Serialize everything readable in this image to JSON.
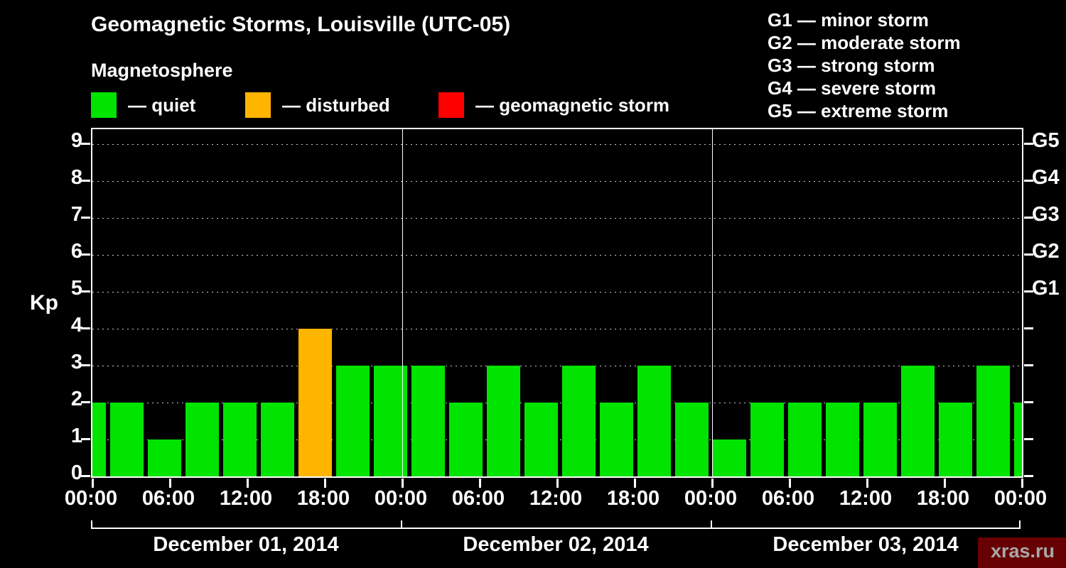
{
  "title": "Geomagnetic Storms, Louisville (UTC-05)",
  "watermark": "xras.ru",
  "legend": {
    "heading": "Magnetosphere",
    "items": [
      {
        "key": "quiet",
        "label": "— quiet",
        "color": "#00e400"
      },
      {
        "key": "disturbed",
        "label": "— disturbed",
        "color": "#ffb400"
      },
      {
        "key": "storm",
        "label": "— geomagnetic storm",
        "color": "#ff0000"
      }
    ]
  },
  "g_scale_legend": [
    "G1 — minor storm",
    "G2 — moderate storm",
    "G3 — strong storm",
    "G4 — severe storm",
    "G5 — extreme storm"
  ],
  "chart_data": {
    "type": "bar",
    "title": "Geomagnetic Storms, Louisville (UTC-05)",
    "ylabel": "Kp",
    "ylim": [
      0,
      9.4
    ],
    "yticks": [
      0,
      1,
      2,
      3,
      4,
      5,
      6,
      7,
      8,
      9
    ],
    "right_axis": [
      {
        "label": "G1",
        "kp": 5
      },
      {
        "label": "G2",
        "kp": 6
      },
      {
        "label": "G3",
        "kp": 7
      },
      {
        "label": "G4",
        "kp": 8
      },
      {
        "label": "G5",
        "kp": 9
      }
    ],
    "x_time_ticks": [
      "00:00",
      "06:00",
      "12:00",
      "18:00",
      "00:00",
      "06:00",
      "12:00",
      "18:00",
      "00:00",
      "06:00",
      "12:00",
      "18:00",
      "00:00"
    ],
    "bar_interval_hours": 3,
    "grid": "dashed horizontal at each integer Kp",
    "legend_position": "top",
    "colors": {
      "quiet": "#00e400",
      "disturbed": "#ffb400",
      "storm": "#ff0000"
    },
    "color_rule": {
      "quiet_max_kp": 3,
      "disturbed_kp": 4,
      "storm_min_kp": 5
    },
    "leading_partial_kp": 2,
    "trailing_partial_kp": 2,
    "days": [
      {
        "date": "December 01, 2014",
        "values": [
          2,
          1,
          2,
          2,
          2,
          4,
          3,
          3
        ]
      },
      {
        "date": "December 02, 2014",
        "values": [
          3,
          2,
          3,
          2,
          3,
          2,
          3,
          2
        ]
      },
      {
        "date": "December 03, 2014",
        "values": [
          1,
          2,
          2,
          2,
          2,
          3,
          2,
          3
        ]
      }
    ]
  }
}
